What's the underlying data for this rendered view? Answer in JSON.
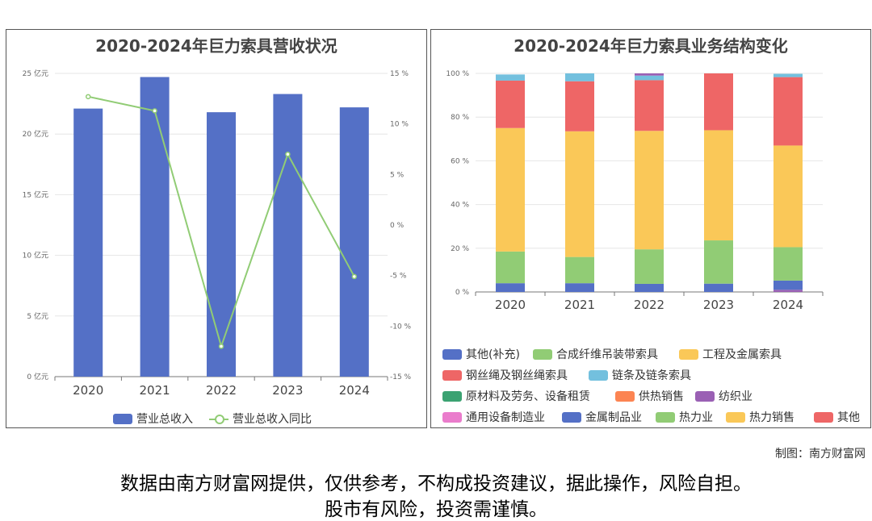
{
  "footer": {
    "credit": "制图：南方财富网",
    "disclaimer_line1": "数据由南方财富网提供，仅供参考，不构成投资建议，据此操作，风险自担。",
    "disclaimer_line2": "股市有风险，投资需谨慎。"
  },
  "chart_data": [
    {
      "type": "bar",
      "title": "2020-2024年巨力索具营收状况",
      "categories": [
        "2020",
        "2021",
        "2022",
        "2023",
        "2024"
      ],
      "series": [
        {
          "name": "营业总收入",
          "type": "bar",
          "axis": "left",
          "values": [
            22.1,
            24.7,
            21.8,
            23.3,
            22.2
          ],
          "color": "#5470c6"
        },
        {
          "name": "营业总收入同比",
          "type": "line",
          "axis": "right",
          "values": [
            12.7,
            11.3,
            -12.0,
            7.0,
            -5.1
          ],
          "color": "#91cc75"
        }
      ],
      "y_left": {
        "min": 0,
        "max": 25,
        "ticks": [
          0,
          5,
          10,
          15,
          20,
          25
        ],
        "tick_labels": [
          "0 亿元",
          "5 亿元",
          "10 亿元",
          "15 亿元",
          "20 亿元",
          "25 亿元"
        ]
      },
      "y_right": {
        "min": -15,
        "max": 15,
        "ticks": [
          -15,
          -10,
          -5,
          0,
          5,
          10,
          15
        ],
        "tick_labels": [
          "-15 %",
          "-10 %",
          "-5 %",
          "0 %",
          "5 %",
          "10 %",
          "15 %"
        ]
      },
      "grid": true,
      "legend": "bottom"
    },
    {
      "type": "bar",
      "stacked": true,
      "title": "2020-2024年巨力索具业务结构变化",
      "categories": [
        "2020",
        "2021",
        "2022",
        "2023",
        "2024"
      ],
      "y": {
        "min": 0,
        "max": 100,
        "ticks": [
          0,
          20,
          40,
          60,
          80,
          100
        ],
        "tick_labels": [
          "0 %",
          "20 %",
          "40 %",
          "60 %",
          "80 %",
          "100 %"
        ]
      },
      "series": [
        {
          "name": "其他(补充)",
          "color": "#5470c6",
          "values": [
            0,
            0,
            0,
            0,
            0
          ]
        },
        {
          "name": "合成纤维吊装带索具",
          "color": "#91cc75",
          "values": [
            0,
            0,
            0,
            0,
            0
          ]
        },
        {
          "name": "工程及金属索具",
          "color": "#fac858",
          "values": [
            0,
            0,
            0,
            0,
            0
          ]
        },
        {
          "name": "钢丝绳及钢丝绳索具",
          "color": "#ee6666",
          "values": [
            0,
            0,
            0,
            0,
            0
          ]
        },
        {
          "name": "链条及链条索具",
          "color": "#73c0de",
          "values": [
            0,
            0,
            0,
            0,
            0
          ]
        },
        {
          "name": "原材料及劳务、设备租赁",
          "color": "#3ba272",
          "values": [
            0,
            0,
            0,
            0,
            0
          ]
        },
        {
          "name": "供热销售",
          "color": "#fc8452",
          "values": [
            0,
            0,
            0,
            0,
            0
          ]
        },
        {
          "name": "纺织业",
          "color": "#9a60b4",
          "values": [
            0,
            0,
            0,
            0,
            1.0
          ]
        },
        {
          "name": "通用设备制造业",
          "color": "#ea7ccc",
          "values": [
            0,
            0,
            0,
            0,
            0
          ]
        },
        {
          "name": "金属制品业",
          "color": "#5470c6",
          "values": [
            4.0,
            4.0,
            3.7,
            3.8,
            4.2
          ]
        },
        {
          "name": "热力业",
          "color": "#91cc75",
          "values": [
            14.5,
            12.0,
            15.8,
            19.8,
            15.3
          ]
        },
        {
          "name": "热力销售",
          "color": "#fac858",
          "values": [
            56.5,
            57.5,
            54.2,
            50.4,
            46.5
          ]
        },
        {
          "name": "其他",
          "color": "#ee6666",
          "values": [
            21.7,
            22.9,
            23.2,
            26.0,
            31.3
          ]
        }
      ],
      "extra_top_segments": [
        {
          "name": "链条及链条索具",
          "color": "#73c0de",
          "values": [
            2.8,
            3.6,
            2.1,
            0,
            1.5
          ]
        },
        {
          "name": "纺织业",
          "color": "#9a60b4",
          "values": [
            0,
            0,
            1.0,
            0,
            0
          ]
        }
      ],
      "grid": true,
      "legend": "bottom"
    }
  ]
}
